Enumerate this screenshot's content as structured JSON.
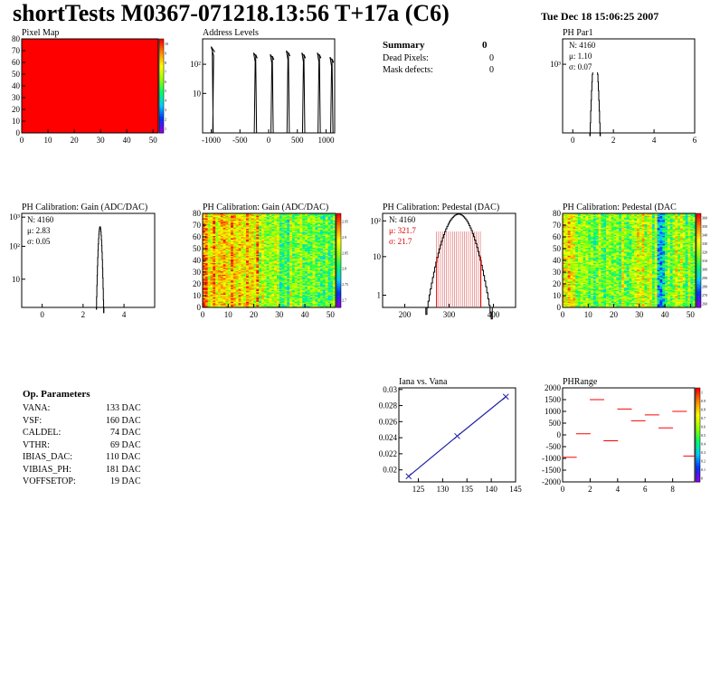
{
  "header": {
    "title": "shortTests M0367-071218.13:56 T+17a (C6)",
    "date": "Tue Dec 18 15:06:25 2007"
  },
  "summary": {
    "title": "Summary",
    "title_value": "0",
    "rows": [
      {
        "label": "Dead Pixels:",
        "value": "0"
      },
      {
        "label": "Mask defects:",
        "value": "0"
      }
    ]
  },
  "op_params": {
    "title": "Op. Parameters",
    "rows": [
      {
        "label": "VANA:",
        "value": "133 DAC"
      },
      {
        "label": "VSF:",
        "value": "160 DAC"
      },
      {
        "label": "CALDEL:",
        "value": "74 DAC"
      },
      {
        "label": "VTHR:",
        "value": "69 DAC"
      },
      {
        "label": "IBIAS_DAC:",
        "value": "110 DAC"
      },
      {
        "label": "VIBIAS_PH:",
        "value": "181 DAC"
      },
      {
        "label": "VOFFSETOP:",
        "value": "19 DAC"
      }
    ]
  },
  "colors": {
    "red": "#ff0000",
    "blue": "#2222aa",
    "hist": "#000000",
    "stat_red": "#dd0000"
  },
  "chart_data": [
    {
      "id": "pixel-map",
      "type": "heatmap",
      "title": "Pixel Map",
      "xlim": [
        0,
        52
      ],
      "ylim": [
        0,
        80
      ],
      "x_ticks": [
        "0",
        "10",
        "20",
        "30",
        "40",
        "50"
      ],
      "y_ticks": [
        "0",
        "10",
        "20",
        "30",
        "40",
        "50",
        "60",
        "70",
        "80"
      ],
      "z_ticks": [
        "10",
        "9",
        "8",
        "7",
        "6",
        "5",
        "4",
        "3",
        "2",
        "1"
      ],
      "uniform_value": 10
    },
    {
      "id": "address-levels",
      "type": "bar",
      "title": "Address Levels",
      "xlim": [
        -1150,
        1150
      ],
      "x_ticks": [
        "-1000",
        "-500",
        "0",
        "500",
        "1000"
      ],
      "y_ticks": [
        "10",
        "10²"
      ],
      "peaks": [
        -970,
        -230,
        60,
        340,
        610,
        880,
        1100
      ],
      "peak_heights": [
        300,
        200,
        180,
        230,
        200,
        200,
        150
      ]
    },
    {
      "id": "ph-par1",
      "type": "bar",
      "title": "PH Par1",
      "xlim": [
        -0.5,
        6
      ],
      "x_ticks": [
        "0",
        "2",
        "4",
        "6"
      ],
      "y_ticks": [
        "10"
      ],
      "stats": {
        "n": "N: 4160",
        "mu": "μ: 1.10",
        "sigma": "σ: 0.07"
      },
      "mean": 1.1,
      "sd": 0.07
    },
    {
      "id": "ph-gain-1d",
      "type": "bar",
      "title": "PH Calibration: Gain (ADC/DAC)",
      "xlim": [
        -1,
        5.5
      ],
      "x_ticks": [
        "0",
        "2",
        "4"
      ],
      "y_ticks": [
        "10³",
        "10²",
        "10"
      ],
      "stats": {
        "n": "N: 4160",
        "mu": "μ: 2.83",
        "sigma": "σ: 0.05"
      },
      "mean": 2.83,
      "sd": 0.05
    },
    {
      "id": "ph-gain-map",
      "type": "heatmap",
      "title": "PH Calibration: Gain (ADC/DAC)",
      "xlim": [
        0,
        52
      ],
      "ylim": [
        0,
        80
      ],
      "x_ticks": [
        "0",
        "10",
        "20",
        "30",
        "40",
        "50"
      ],
      "y_ticks": [
        "0",
        "10",
        "20",
        "30",
        "40",
        "50",
        "60",
        "70",
        "80"
      ],
      "z_ticks": [
        "2.95",
        "2.9",
        "2.85",
        "2.8",
        "2.75",
        "2.7"
      ]
    },
    {
      "id": "ph-pedestal-1d",
      "type": "bar",
      "title": "PH Calibration: Pedestal (DAC)",
      "xlim": [
        150,
        450
      ],
      "x_ticks": [
        "200",
        "300",
        "400"
      ],
      "y_ticks": [
        "10²",
        "10",
        "1"
      ],
      "stats": {
        "n": "N: 4160",
        "mu": "μ: 321.7",
        "sigma": "σ: 21.7"
      },
      "mean": 321.7,
      "sd": 21.7
    },
    {
      "id": "ph-pedestal-map",
      "type": "heatmap",
      "title": "PH Calibration: Pedestal (DAC",
      "xlim": [
        0,
        52
      ],
      "ylim": [
        0,
        80
      ],
      "x_ticks": [
        "0",
        "10",
        "20",
        "30",
        "40",
        "50"
      ],
      "y_ticks": [
        "0",
        "10",
        "20",
        "30",
        "40",
        "50",
        "60",
        "70",
        "80"
      ],
      "z_ticks": [
        "360",
        "350",
        "340",
        "330",
        "320",
        "310",
        "300",
        "290",
        "280",
        "270",
        "260"
      ]
    },
    {
      "id": "iana-vana",
      "type": "line",
      "title": "Iana vs. Vana",
      "xlim": [
        121,
        145
      ],
      "ylim": [
        0.0185,
        0.0302
      ],
      "x_ticks": [
        "125",
        "130",
        "135",
        "140",
        "145"
      ],
      "y_ticks": [
        "0.02",
        "0.022",
        "0.024",
        "0.026",
        "0.028",
        "0.03"
      ],
      "x": [
        123,
        133,
        143
      ],
      "y": [
        0.0192,
        0.0242,
        0.0291
      ]
    },
    {
      "id": "ph-range",
      "type": "scatter",
      "title": "PHRange",
      "xlim": [
        0,
        9.6
      ],
      "ylim": [
        -2000,
        2000
      ],
      "x_ticks": [
        "0",
        "2",
        "4",
        "6",
        "8"
      ],
      "y_ticks": [
        "2000",
        "1500",
        "1000",
        "500",
        "0",
        "-500",
        "-1000",
        "-1500",
        "-2000"
      ],
      "z_ticks": [
        "1",
        "0.9",
        "0.8",
        "0.7",
        "0.6",
        "0.5",
        "0.4",
        "0.3",
        "0.2",
        "0.1",
        "0"
      ],
      "x": [
        0.5,
        1.5,
        2.5,
        3.5,
        4.5,
        5.5,
        6.5,
        7.5,
        8.5,
        9.3
      ],
      "y": [
        -950,
        50,
        1500,
        -250,
        1100,
        600,
        850,
        300,
        1000,
        -900
      ]
    }
  ]
}
